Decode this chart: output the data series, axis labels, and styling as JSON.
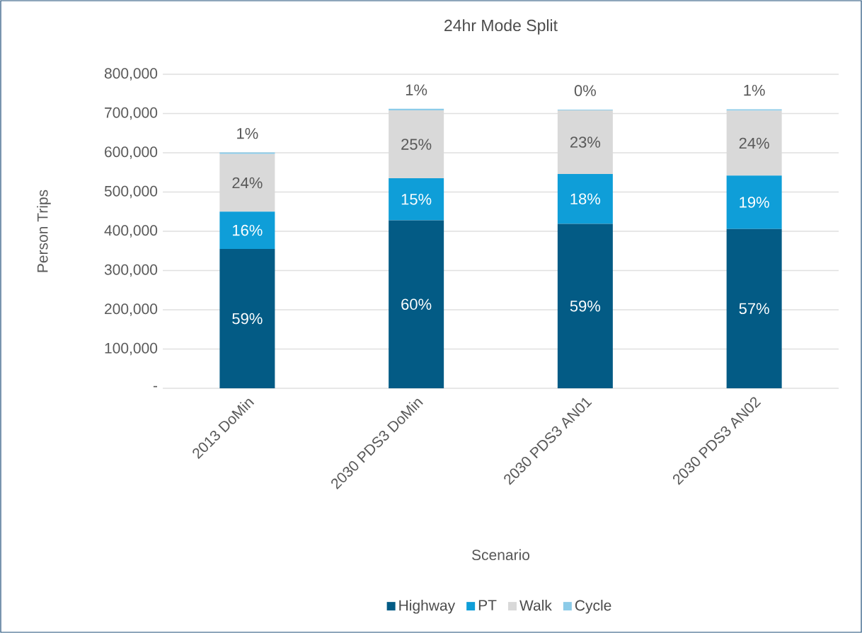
{
  "chart_data": {
    "type": "bar",
    "stacked": true,
    "title": "24hr Mode Split",
    "xlabel": "Scenario",
    "ylabel": "Person Trips",
    "categories": [
      "2013 DoMin",
      "2030 PDS3 DoMin",
      "2030 PDS3 AN01",
      "2030 PDS3 AN02"
    ],
    "series": [
      {
        "name": "Highway",
        "color": "#035b85",
        "values": [
          355000,
          428000,
          419000,
          406000
        ]
      },
      {
        "name": "PT",
        "color": "#0f9ed8",
        "values": [
          95000,
          107000,
          127000,
          136000
        ]
      },
      {
        "name": "Walk",
        "color": "#d9d9d9",
        "values": [
          147000,
          173000,
          162000,
          165000
        ]
      },
      {
        "name": "Cycle",
        "color": "#8ccbe8",
        "values": [
          4000,
          4000,
          2000,
          4000
        ]
      }
    ],
    "annotations": [
      "59%",
      {
        "text": "16%",
        "x": "2013 DoMin",
        "y": 450000
      },
      {
        "text": "24%",
        "x": "2013 DoMin",
        "y": 597000
      },
      {
        "text": "1%",
        "x": "2013 DoMin",
        "y": 601000
      },
      "60%",
      {
        "text": "15%",
        "x": "2030 PDS3 DoMin",
        "y": 535000
      },
      {
        "text": "25%",
        "x": "2030 PDS3 DoMin",
        "y": 708000
      },
      {
        "text": "1%",
        "x": "2030 PDS3 DoMin",
        "y": 712000
      },
      "59%",
      {
        "text": "18%",
        "x": "2030 PDS3 AN01",
        "y": 546000
      },
      {
        "text": "23%",
        "x": "2030 PDS3 AN01",
        "y": 708000
      },
      {
        "text": "0%",
        "x": "2030 PDS3 AN01",
        "y": 710000
      },
      "57%",
      {
        "text": "19%",
        "x": "2030 PDS3 AN02",
        "y": 542000
      },
      {
        "text": "24%",
        "x": "2030 PDS3 AN02",
        "y": 707000
      },
      {
        "text": "1%",
        "x": "2030 PDS3 AN02",
        "y": 711000
      }
    ],
    "ylim": [
      0,
      800000
    ],
    "yticks": [
      {
        "value": 0,
        "label": "-"
      },
      {
        "value": 100000,
        "label": "100,000"
      },
      {
        "value": 200000,
        "label": "200,000"
      },
      {
        "value": 300000,
        "label": "300,000"
      },
      {
        "value": 400000,
        "label": "400,000"
      },
      {
        "value": 500000,
        "label": "500,000"
      },
      {
        "value": 600000,
        "label": "600,000"
      },
      {
        "value": 700000,
        "label": "700,000"
      },
      {
        "value": 800000,
        "label": "800,000"
      }
    ],
    "grid": "y",
    "legend": "bottom"
  }
}
